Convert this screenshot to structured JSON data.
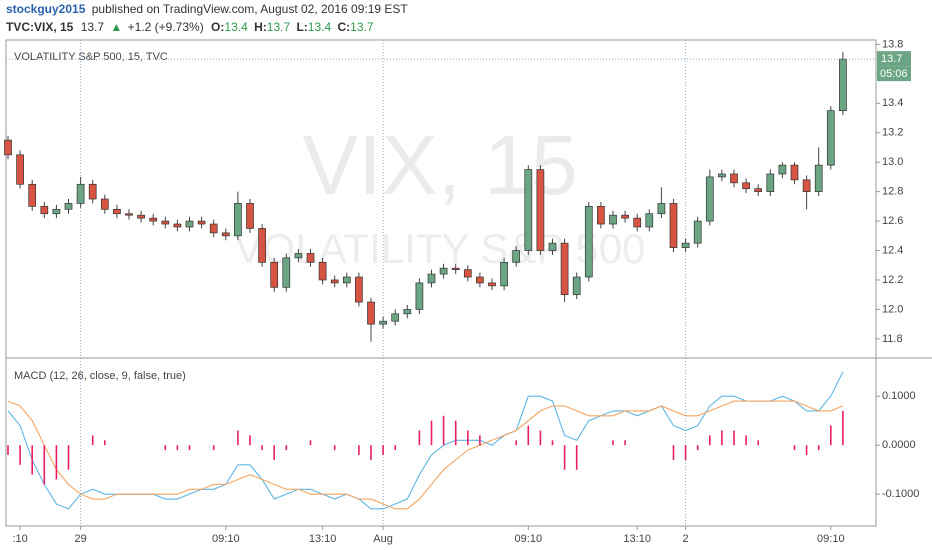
{
  "header": {
    "author": "stockguy2015",
    "published": "published on TradingView.com, August 02, 2016 09:19 EST",
    "symbol": "TVC:VIX, 15",
    "price": "13.7",
    "arrow": "▲",
    "change": "+1.2 (+9.73%)",
    "o_label": "O:",
    "o": "13.4",
    "h_label": "H:",
    "h": "13.7",
    "l_label": "L:",
    "l": "13.4",
    "c_label": "C:",
    "c": "13.7"
  },
  "chart_data": [
    {
      "type": "candlestick",
      "title": "VOLATILITY S&P 500, 15, TVC",
      "watermark": "VIX, 15",
      "watermark_sub": "VOLATILITY S&P 500",
      "countdown": "05:06",
      "up_color": "#6ba583",
      "down_color": "#d75442",
      "categories": [
        null,
        ":10",
        null,
        null,
        null,
        null,
        "29",
        null,
        null,
        null,
        null,
        null,
        null,
        null,
        null,
        null,
        null,
        null,
        "09:10",
        null,
        null,
        null,
        null,
        null,
        null,
        null,
        "13:10",
        null,
        null,
        null,
        null,
        "Aug",
        null,
        null,
        null,
        null,
        null,
        null,
        null,
        null,
        null,
        null,
        null,
        "09:10",
        null,
        null,
        null,
        null,
        null,
        null,
        null,
        null,
        "13:10",
        null,
        null,
        null,
        "2",
        null,
        null,
        null,
        null,
        null,
        null,
        null,
        null,
        null,
        null,
        null,
        "09:10",
        null
      ],
      "open": [
        13.15,
        13.05,
        12.85,
        12.7,
        12.65,
        12.68,
        12.72,
        12.85,
        12.75,
        12.68,
        12.65,
        12.64,
        12.62,
        12.6,
        12.58,
        12.56,
        12.6,
        12.58,
        12.52,
        12.5,
        12.72,
        12.55,
        12.32,
        12.15,
        12.35,
        12.38,
        12.32,
        12.2,
        12.18,
        12.22,
        12.05,
        11.9,
        11.92,
        11.97,
        12.0,
        12.18,
        12.24,
        12.28,
        12.27,
        12.22,
        12.18,
        12.16,
        12.32,
        12.4,
        12.95,
        12.4,
        12.45,
        12.1,
        12.22,
        12.7,
        12.58,
        12.64,
        12.62,
        12.56,
        12.65,
        12.72,
        12.42,
        12.45,
        12.6,
        12.9,
        12.92,
        12.86,
        12.82,
        12.8,
        12.92,
        12.98,
        12.88,
        12.8,
        12.98,
        13.35
      ],
      "high": [
        13.18,
        13.08,
        12.88,
        12.73,
        12.71,
        12.75,
        12.9,
        12.88,
        12.78,
        12.71,
        12.68,
        12.67,
        12.65,
        12.63,
        12.61,
        12.63,
        12.63,
        12.61,
        12.55,
        12.8,
        12.75,
        12.58,
        12.35,
        12.38,
        12.41,
        12.41,
        12.35,
        12.23,
        12.25,
        12.25,
        12.08,
        11.95,
        12.0,
        12.03,
        12.21,
        12.27,
        12.31,
        12.31,
        12.3,
        12.25,
        12.21,
        12.35,
        12.43,
        12.98,
        12.98,
        12.48,
        12.48,
        12.25,
        12.73,
        12.73,
        12.67,
        12.67,
        12.65,
        12.68,
        12.83,
        12.75,
        12.48,
        12.63,
        12.95,
        12.95,
        12.95,
        12.89,
        12.85,
        12.95,
        13.0,
        13.0,
        12.91,
        13.1,
        13.38,
        13.75
      ],
      "low": [
        13.02,
        12.82,
        12.67,
        12.62,
        12.62,
        12.65,
        12.69,
        12.72,
        12.65,
        12.62,
        12.61,
        12.59,
        12.57,
        12.55,
        12.53,
        12.53,
        12.55,
        12.49,
        12.47,
        12.47,
        12.52,
        12.29,
        12.12,
        12.12,
        12.32,
        12.29,
        12.17,
        12.15,
        12.15,
        12.02,
        11.78,
        11.87,
        11.89,
        11.94,
        11.97,
        12.15,
        12.21,
        12.24,
        12.19,
        12.15,
        12.13,
        12.13,
        12.29,
        12.37,
        12.37,
        12.37,
        12.05,
        12.07,
        12.19,
        12.55,
        12.55,
        12.59,
        12.53,
        12.53,
        12.62,
        12.39,
        12.39,
        12.42,
        12.57,
        12.87,
        12.83,
        12.79,
        12.77,
        12.77,
        12.89,
        12.85,
        12.68,
        12.77,
        12.95,
        13.32
      ],
      "close": [
        13.05,
        12.85,
        12.7,
        12.65,
        12.68,
        12.72,
        12.85,
        12.75,
        12.68,
        12.65,
        12.64,
        12.62,
        12.6,
        12.58,
        12.56,
        12.6,
        12.58,
        12.52,
        12.5,
        12.72,
        12.55,
        12.32,
        12.15,
        12.35,
        12.38,
        12.32,
        12.2,
        12.18,
        12.22,
        12.05,
        11.9,
        11.92,
        11.97,
        12.0,
        12.18,
        12.24,
        12.28,
        12.27,
        12.22,
        12.18,
        12.16,
        12.32,
        12.4,
        12.95,
        12.4,
        12.45,
        12.1,
        12.22,
        12.7,
        12.58,
        12.64,
        12.62,
        12.56,
        12.65,
        12.72,
        12.42,
        12.45,
        12.6,
        12.9,
        12.92,
        12.86,
        12.82,
        12.8,
        12.92,
        12.98,
        12.88,
        12.8,
        12.98,
        13.35,
        13.7
      ],
      "ylim": [
        11.67,
        13.83
      ],
      "yticks": [
        11.8,
        {
          "value": 12,
          "label": "12.0"
        },
        12.2,
        12.4,
        12.6,
        12.8,
        {
          "value": 13,
          "label": "13.0"
        },
        13.2,
        13.4,
        13.6,
        13.8
      ]
    },
    {
      "type": "macd",
      "title": "MACD (12, 26, close, 9, false, true)",
      "series": [
        {
          "name": "MACD",
          "color": "#5eb6e4",
          "values": [
            0.07,
            0.04,
            -0.03,
            -0.08,
            -0.12,
            -0.13,
            -0.1,
            -0.09,
            -0.1,
            -0.1,
            -0.1,
            -0.1,
            -0.1,
            -0.11,
            -0.11,
            -0.1,
            -0.09,
            -0.09,
            -0.08,
            -0.04,
            -0.04,
            -0.07,
            -0.11,
            -0.1,
            -0.09,
            -0.09,
            -0.1,
            -0.11,
            -0.1,
            -0.11,
            -0.13,
            -0.13,
            -0.12,
            -0.11,
            -0.06,
            -0.02,
            0.0,
            0.01,
            0.01,
            0.01,
            0.0,
            0.02,
            0.03,
            0.1,
            0.1,
            0.09,
            0.02,
            0.01,
            0.05,
            0.06,
            0.07,
            0.07,
            0.06,
            0.07,
            0.08,
            0.04,
            0.03,
            0.04,
            0.08,
            0.1,
            0.1,
            0.09,
            0.09,
            0.09,
            0.1,
            0.09,
            0.07,
            0.07,
            0.1,
            0.15
          ]
        },
        {
          "name": "Signal",
          "color": "#f4a460",
          "values": [
            0.09,
            0.08,
            0.05,
            0.0,
            -0.05,
            -0.08,
            -0.1,
            -0.11,
            -0.11,
            -0.1,
            -0.1,
            -0.1,
            -0.1,
            -0.1,
            -0.1,
            -0.09,
            -0.09,
            -0.08,
            -0.08,
            -0.07,
            -0.06,
            -0.07,
            -0.08,
            -0.09,
            -0.09,
            -0.1,
            -0.1,
            -0.1,
            -0.1,
            -0.11,
            -0.11,
            -0.12,
            -0.13,
            -0.13,
            -0.11,
            -0.08,
            -0.05,
            -0.03,
            -0.01,
            0.0,
            0.01,
            0.02,
            0.03,
            0.05,
            0.07,
            0.08,
            0.08,
            0.07,
            0.06,
            0.06,
            0.06,
            0.07,
            0.07,
            0.07,
            0.08,
            0.07,
            0.06,
            0.06,
            0.07,
            0.08,
            0.09,
            0.09,
            0.09,
            0.09,
            0.09,
            0.09,
            0.08,
            0.07,
            0.07,
            0.08
          ]
        },
        {
          "name": "Histogram",
          "color": "#e91e63",
          "values": [
            -0.02,
            -0.04,
            -0.06,
            -0.08,
            -0.07,
            -0.05,
            0.0,
            0.02,
            0.01,
            0.0,
            0.0,
            0.0,
            0.0,
            -0.01,
            -0.01,
            -0.01,
            0.0,
            -0.01,
            0.0,
            0.03,
            0.02,
            -0.01,
            -0.03,
            -0.01,
            0.0,
            0.01,
            0.0,
            -0.01,
            0.0,
            -0.02,
            -0.03,
            -0.02,
            -0.01,
            0.0,
            0.03,
            0.05,
            0.06,
            0.05,
            0.03,
            0.02,
            0.0,
            0.0,
            0.01,
            0.04,
            0.03,
            0.01,
            -0.05,
            -0.05,
            0.0,
            0.0,
            0.01,
            0.01,
            0.0,
            0.0,
            0.0,
            -0.03,
            -0.03,
            -0.01,
            0.02,
            0.03,
            0.03,
            0.02,
            0.01,
            0.0,
            0.0,
            -0.01,
            -0.02,
            -0.01,
            0.04,
            0.07
          ]
        }
      ],
      "ylim": [
        -0.165,
        0.178
      ],
      "yticks": [
        {
          "value": -0.1,
          "label": "-0.1000"
        },
        {
          "value": 0,
          "label": "0.0000"
        },
        {
          "value": 0.1,
          "label": "0.1000"
        }
      ]
    }
  ]
}
